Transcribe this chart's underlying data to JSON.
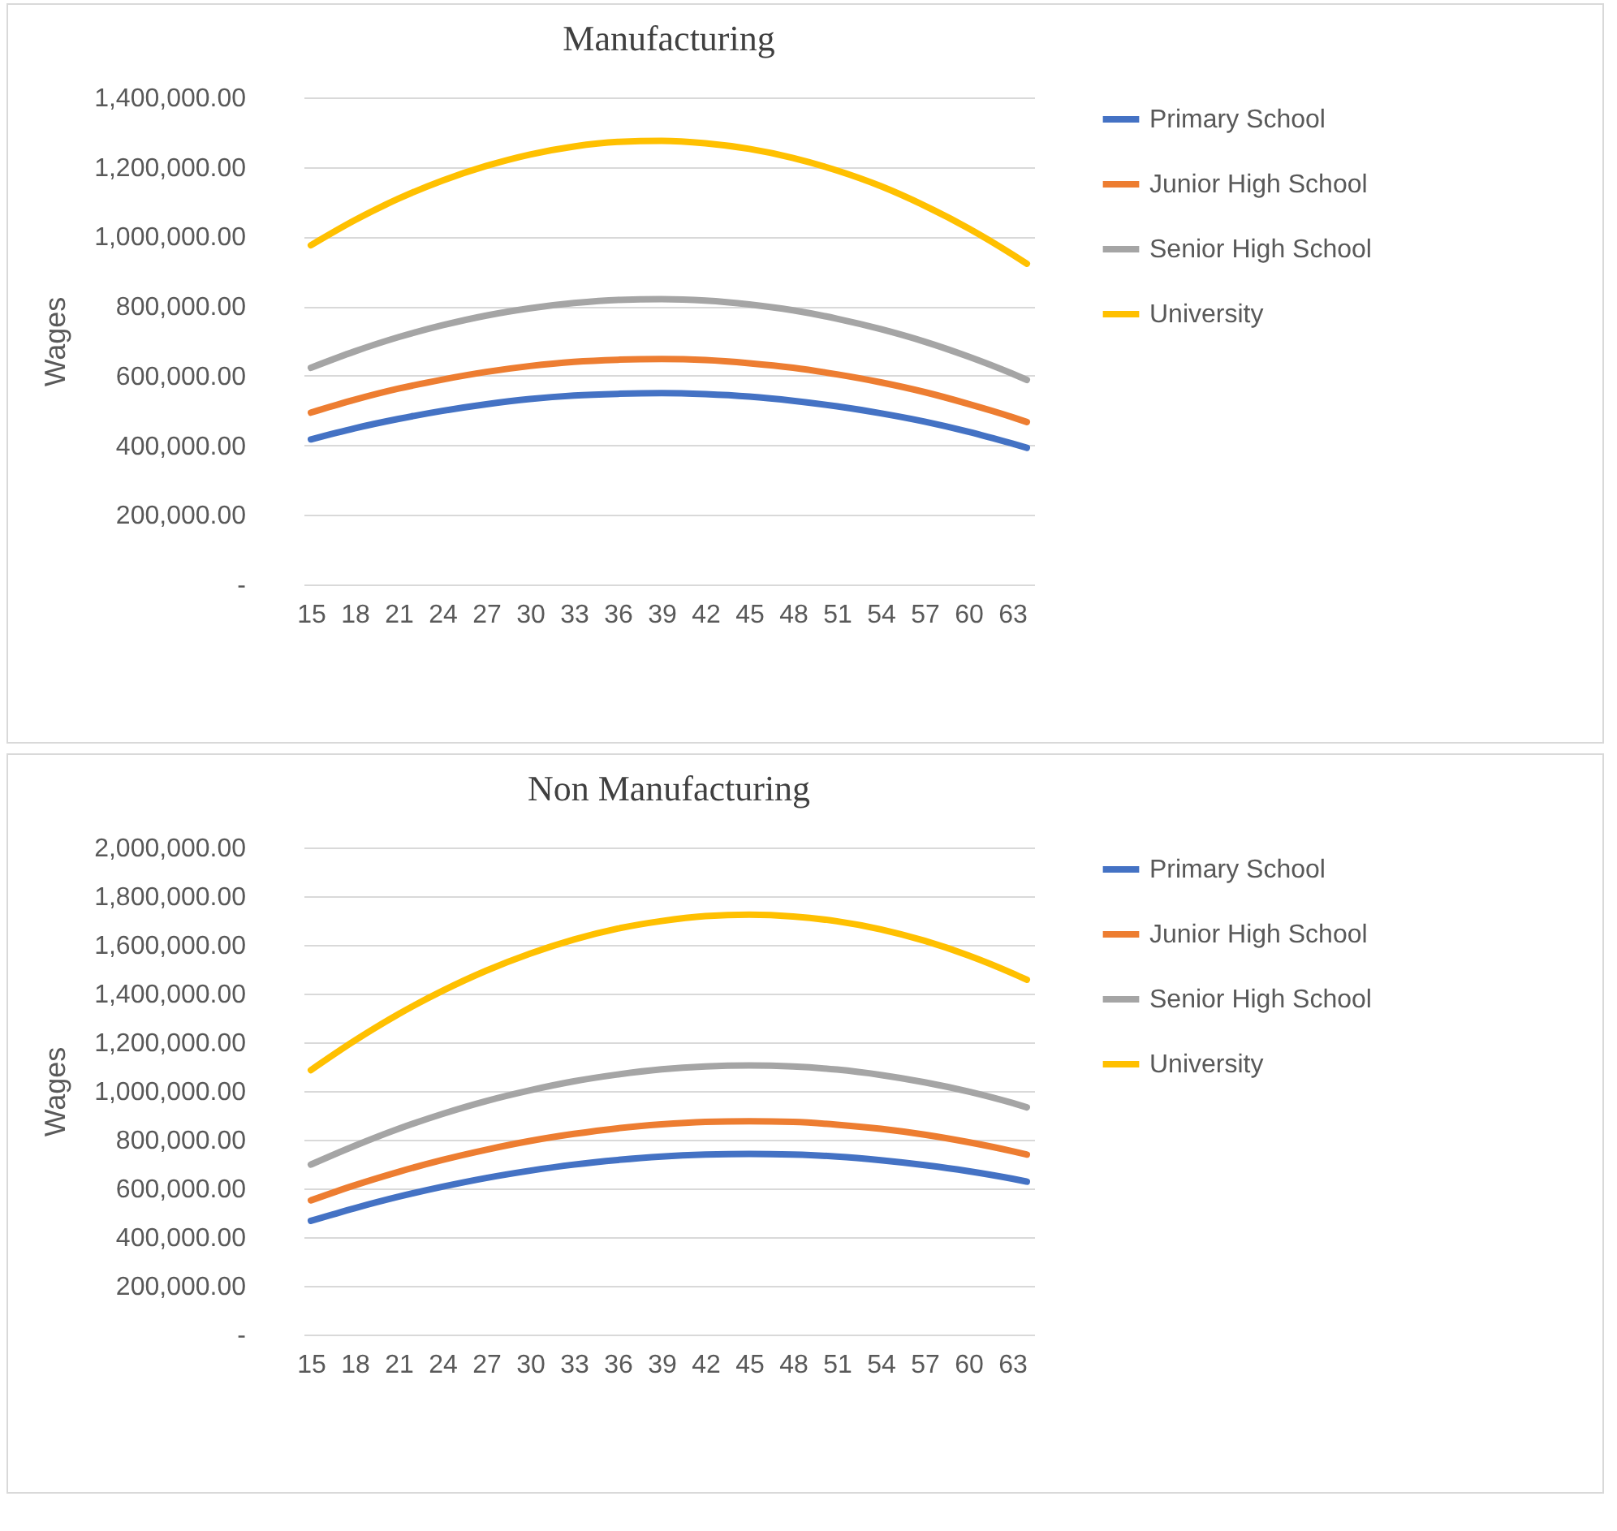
{
  "chart_data": [
    {
      "type": "line",
      "title": "Manufacturing",
      "ylabel": "Wages",
      "x": [
        15,
        18,
        21,
        24,
        27,
        30,
        33,
        36,
        39,
        42,
        45,
        48,
        51,
        54,
        57,
        60,
        63,
        64
      ],
      "xlim": [
        14.5,
        64.5
      ],
      "xticks": [
        15,
        18,
        21,
        24,
        27,
        30,
        33,
        36,
        39,
        42,
        45,
        48,
        51,
        54,
        57,
        60,
        63
      ],
      "ylim": [
        0,
        1400000
      ],
      "yticks": [
        {
          "value": 0,
          "label": "-"
        },
        {
          "value": 200000,
          "label": "200,000.00"
        },
        {
          "value": 400000,
          "label": "400,000.00"
        },
        {
          "value": 600000,
          "label": "600,000.00"
        },
        {
          "value": 800000,
          "label": "800,000.00"
        },
        {
          "value": 1000000,
          "label": "1,000,000.00"
        },
        {
          "value": 1200000,
          "label": "1,200,000.00"
        },
        {
          "value": 1400000,
          "label": "1,400,000.00"
        }
      ],
      "grid": "y",
      "legend": "right",
      "marker": "none",
      "line_style": "solid",
      "series": [
        {
          "name": "Primary School",
          "color": "#4472c4",
          "values": [
            417000,
            449000,
            476000,
            499000,
            518000,
            533000,
            543000,
            548000,
            550000,
            547000,
            540000,
            528000,
            512000,
            492000,
            468000,
            439000,
            405000,
            393000
          ]
        },
        {
          "name": "Junior High School",
          "color": "#ed7d31",
          "values": [
            494000,
            531000,
            563000,
            589000,
            611000,
            628000,
            640000,
            646000,
            648000,
            645000,
            636000,
            623000,
            604000,
            581000,
            553000,
            519000,
            481000,
            467000
          ]
        },
        {
          "name": "Senior High School",
          "color": "#a5a5a5",
          "values": [
            623000,
            670000,
            711000,
            745000,
            773000,
            794000,
            809000,
            818000,
            820000,
            816000,
            805000,
            788000,
            764000,
            734000,
            698000,
            655000,
            606000,
            588000
          ]
        },
        {
          "name": "University",
          "color": "#ffc000",
          "values": [
            975000,
            1047000,
            1109000,
            1161000,
            1203000,
            1236000,
            1259000,
            1272000,
            1275000,
            1268000,
            1252000,
            1226000,
            1190000,
            1145000,
            1089000,
            1024000,
            949000,
            922000
          ]
        }
      ]
    },
    {
      "type": "line",
      "title": "Non Manufacturing",
      "ylabel": "Wages",
      "x": [
        15,
        18,
        21,
        24,
        27,
        30,
        33,
        36,
        39,
        42,
        45,
        48,
        51,
        54,
        57,
        60,
        63,
        64
      ],
      "xlim": [
        14.5,
        64.5
      ],
      "xticks": [
        15,
        18,
        21,
        24,
        27,
        30,
        33,
        36,
        39,
        42,
        45,
        48,
        51,
        54,
        57,
        60,
        63
      ],
      "ylim": [
        0,
        2000000
      ],
      "yticks": [
        {
          "value": 0,
          "label": "-"
        },
        {
          "value": 200000,
          "label": "200,000.00"
        },
        {
          "value": 400000,
          "label": "400,000.00"
        },
        {
          "value": 600000,
          "label": "600,000.00"
        },
        {
          "value": 800000,
          "label": "800,000.00"
        },
        {
          "value": 1000000,
          "label": "1,000,000.00"
        },
        {
          "value": 1200000,
          "label": "1,200,000.00"
        },
        {
          "value": 1400000,
          "label": "1,400,000.00"
        },
        {
          "value": 1600000,
          "label": "1,600,000.00"
        },
        {
          "value": 1800000,
          "label": "1,800,000.00"
        },
        {
          "value": 2000000,
          "label": "2,000,000.00"
        }
      ],
      "grid": "y",
      "legend": "right",
      "marker": "none",
      "line_style": "solid",
      "series": [
        {
          "name": "Primary School",
          "color": "#4472c4",
          "values": [
            467000,
            519000,
            566000,
            607000,
            643000,
            673000,
            698000,
            717000,
            731000,
            739000,
            742000,
            739000,
            731000,
            716000,
            696000,
            671000,
            640000,
            628000
          ]
        },
        {
          "name": "Junior High School",
          "color": "#ed7d31",
          "values": [
            551000,
            613000,
            668000,
            717000,
            759000,
            795000,
            824000,
            847000,
            863000,
            873000,
            876000,
            873000,
            862000,
            845000,
            821000,
            790000,
            753000,
            739000
          ]
        },
        {
          "name": "Senior High School",
          "color": "#a5a5a5",
          "values": [
            698000,
            775000,
            845000,
            906000,
            959000,
            1003000,
            1040000,
            1068000,
            1089000,
            1101000,
            1105000,
            1101000,
            1088000,
            1066000,
            1036000,
            998000,
            951000,
            933000
          ]
        },
        {
          "name": "University",
          "color": "#ffc000",
          "values": [
            1086000,
            1207000,
            1316000,
            1411000,
            1494000,
            1564000,
            1622000,
            1667000,
            1698000,
            1718000,
            1724000,
            1717000,
            1697000,
            1664000,
            1617000,
            1557000,
            1484000,
            1457000
          ]
        }
      ]
    }
  ]
}
